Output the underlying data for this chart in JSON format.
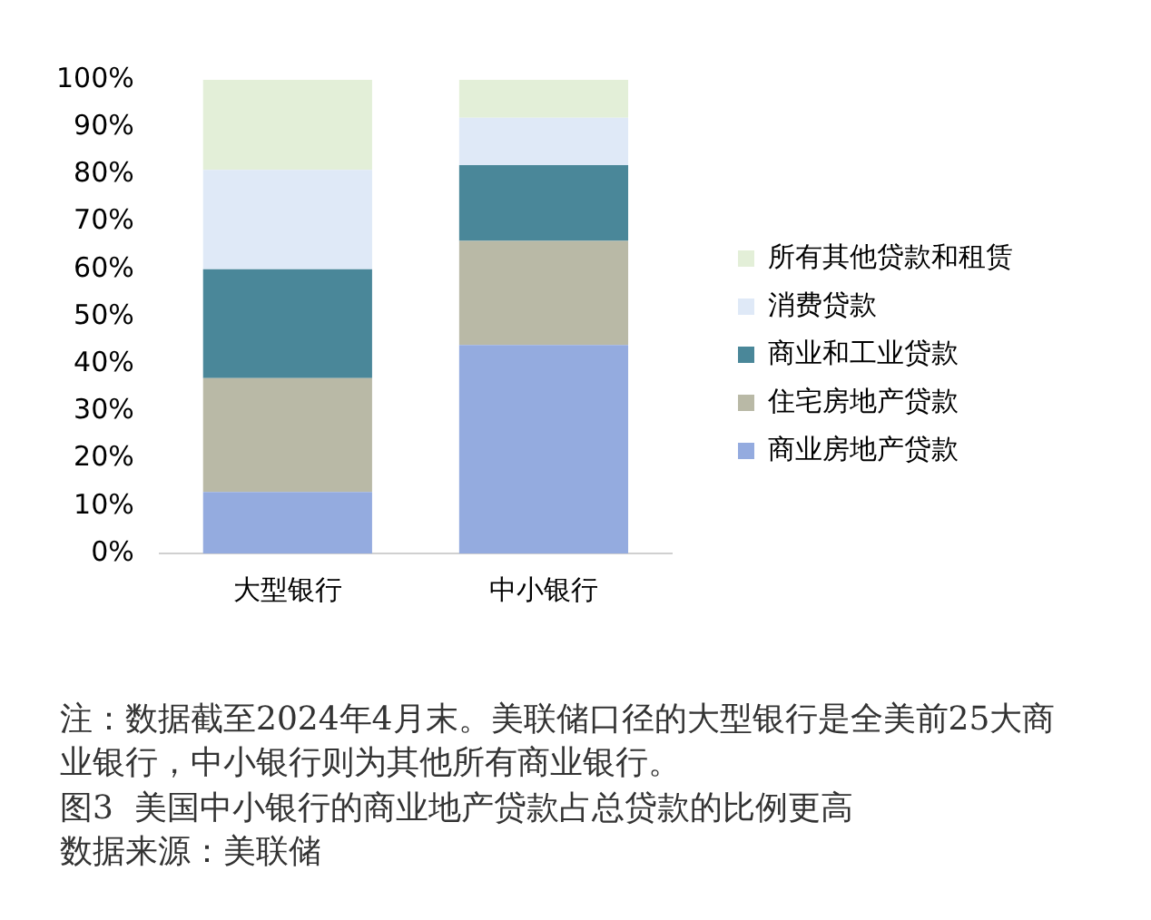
{
  "chart_data": {
    "type": "bar",
    "stacked": true,
    "title": "图3  美国中小银行的商业地产贷款占总贷款的比例更高",
    "categories": [
      "大型银行",
      "中小银行"
    ],
    "series": [
      {
        "name": "商业房地产贷款",
        "color": "#94abdf",
        "values": [
          13,
          44
        ]
      },
      {
        "name": "住宅房地产贷款",
        "color": "#b9b9a6",
        "values": [
          24,
          22
        ]
      },
      {
        "name": "商业和工业贷款",
        "color": "#4a8799",
        "values": [
          23,
          16
        ]
      },
      {
        "name": "消费贷款",
        "color": "#dfe9f7",
        "values": [
          21,
          10
        ]
      },
      {
        "name": "所有其他贷款和租赁",
        "color": "#e3efd8",
        "values": [
          19,
          8
        ]
      }
    ],
    "ylim": [
      0,
      100
    ],
    "yticks": [
      {
        "value": 0,
        "label": "0%"
      },
      {
        "value": 10,
        "label": "10%"
      },
      {
        "value": 20,
        "label": "20%"
      },
      {
        "value": 30,
        "label": "30%"
      },
      {
        "value": 40,
        "label": "40%"
      },
      {
        "value": 50,
        "label": "50%"
      },
      {
        "value": 60,
        "label": "60%"
      },
      {
        "value": 70,
        "label": "70%"
      },
      {
        "value": 80,
        "label": "80%"
      },
      {
        "value": 90,
        "label": "90%"
      },
      {
        "value": 100,
        "label": "100%"
      }
    ],
    "grid": false,
    "legend": "right",
    "annotations": [
      "注：数据截至2024年4月末。美联储口径的大型银行是全美前25大商业银行，中小银行则为其他所有商业银行。",
      "数据来源：美联储"
    ]
  }
}
